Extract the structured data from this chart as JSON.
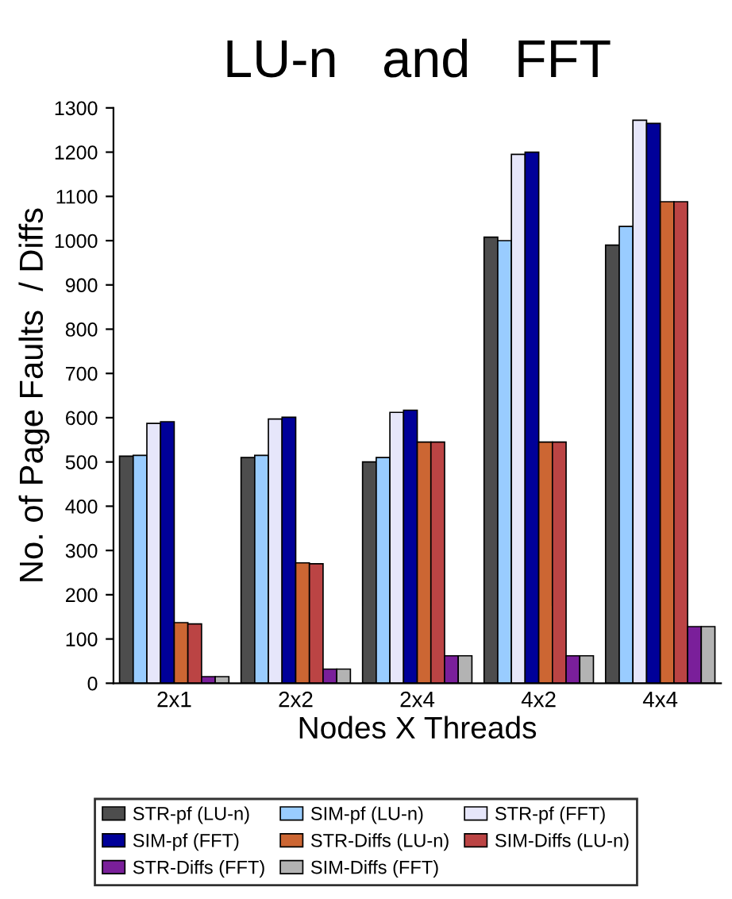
{
  "chart_data": {
    "type": "bar",
    "title": "LU-n   and   FFT",
    "xlabel": "Nodes X Threads",
    "ylabel": "No. of Page Faults  / Diffs",
    "categories": [
      "2x1",
      "2x2",
      "2x4",
      "4x2",
      "4x4"
    ],
    "series": [
      {
        "name": "STR-pf (LU-n)",
        "color": "#4d4d4d",
        "values": [
          513,
          510,
          500,
          1008,
          990
        ]
      },
      {
        "name": "SIM-pf (LU-n)",
        "color": "#99ccff",
        "values": [
          515,
          515,
          510,
          1000,
          1032
        ]
      },
      {
        "name": "STR-pf (FFT)",
        "color": "#e6e6fa",
        "values": [
          587,
          597,
          612,
          1195,
          1272
        ]
      },
      {
        "name": "SIM-pf (FFT)",
        "color": "#000099",
        "values": [
          591,
          601,
          617,
          1200,
          1265
        ]
      },
      {
        "name": "STR-Diffs (LU-n)",
        "color": "#cc6633",
        "values": [
          137,
          272,
          545,
          545,
          1088
        ]
      },
      {
        "name": "SIM-Diffs (LU-n)",
        "color": "#bb4444",
        "values": [
          134,
          270,
          545,
          545,
          1088
        ]
      },
      {
        "name": "STR-Diffs (FFT)",
        "color": "#7a1f9a",
        "values": [
          15,
          32,
          62,
          62,
          128
        ]
      },
      {
        "name": "SIM-Diffs (FFT)",
        "color": "#b3b3b3",
        "values": [
          15,
          32,
          62,
          62,
          128
        ]
      }
    ],
    "ylim": [
      0,
      1300
    ],
    "yticks": [
      0,
      100,
      200,
      300,
      400,
      500,
      600,
      700,
      800,
      900,
      1000,
      1100,
      1200,
      1300
    ],
    "grid": false,
    "legend": "bottom"
  }
}
